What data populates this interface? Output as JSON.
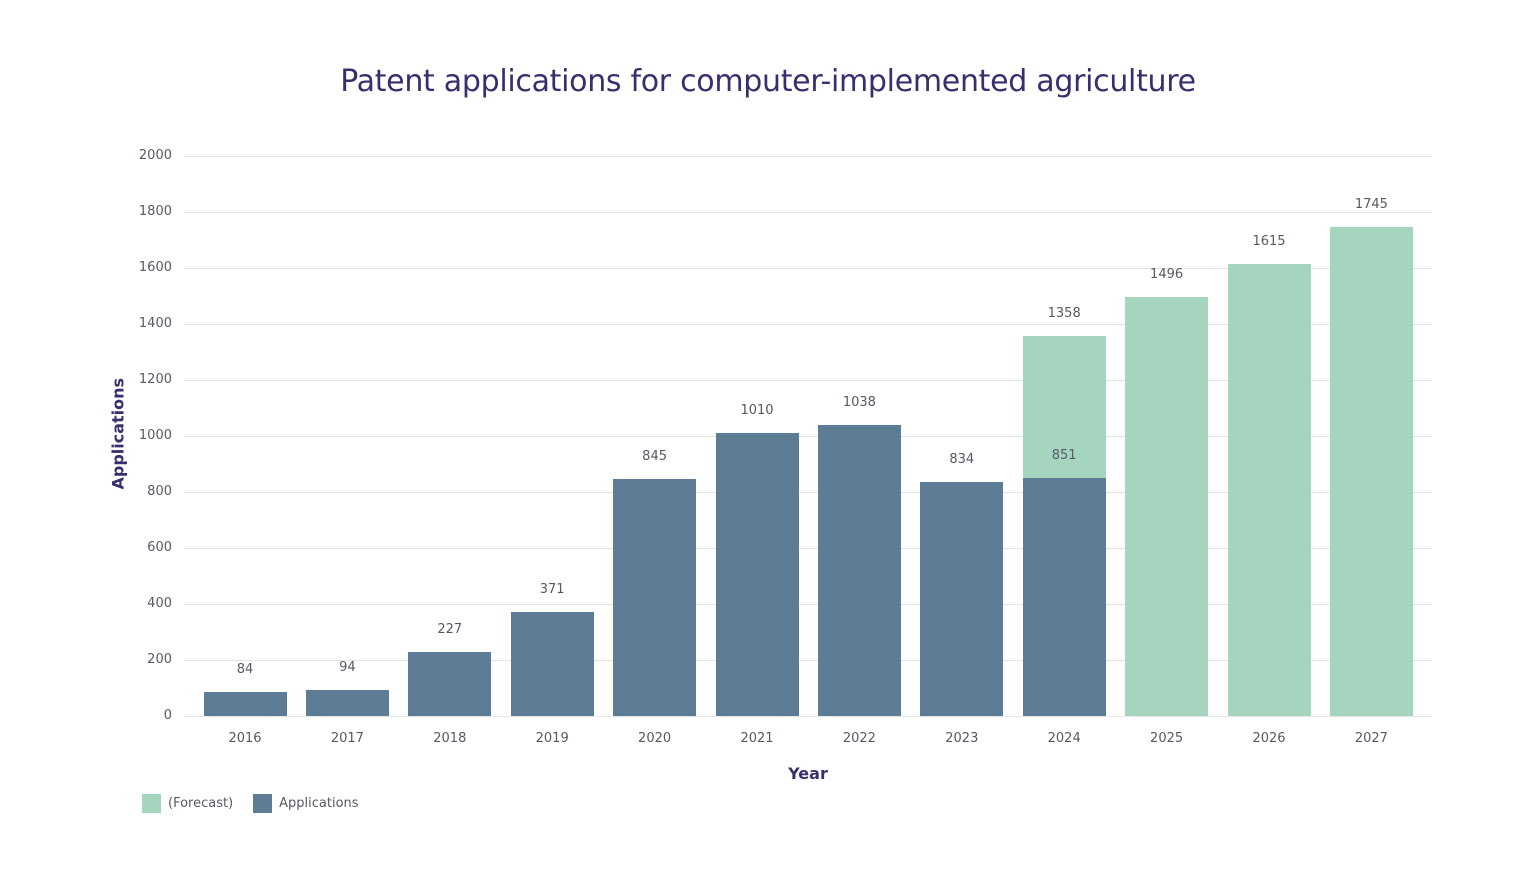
{
  "chart_data": {
    "type": "bar",
    "title": "Patent applications for computer-implemented agriculture",
    "xlabel": "Year",
    "ylabel": "Applications",
    "ylim": [
      0,
      2000
    ],
    "yticks": [
      0,
      200,
      400,
      600,
      800,
      1000,
      1200,
      1400,
      1600,
      1800,
      2000
    ],
    "grid": true,
    "legend_position": "bottom-left",
    "categories": [
      "2016",
      "2017",
      "2018",
      "2019",
      "2020",
      "2021",
      "2022",
      "2023",
      "2024",
      "2025",
      "2026",
      "2027"
    ],
    "series": [
      {
        "name": "(Forecast)",
        "color": "#a5d5bf",
        "values": [
          null,
          null,
          null,
          null,
          null,
          null,
          null,
          null,
          1358,
          1496,
          1615,
          1745
        ]
      },
      {
        "name": "Applications",
        "color": "#5d7d96",
        "values": [
          84,
          94,
          227,
          371,
          845,
          1010,
          1038,
          834,
          851,
          null,
          null,
          null
        ]
      }
    ]
  },
  "legend": {
    "items": [
      {
        "label": "(Forecast)",
        "color": "#a5d5bf"
      },
      {
        "label": "Applications",
        "color": "#5d7d96"
      }
    ]
  },
  "colors": {
    "title": "#3a2e6e",
    "actual": "#5d7d96",
    "forecast": "#a5d5bf",
    "grid": "#e4e4e4",
    "text": "#555a66"
  }
}
